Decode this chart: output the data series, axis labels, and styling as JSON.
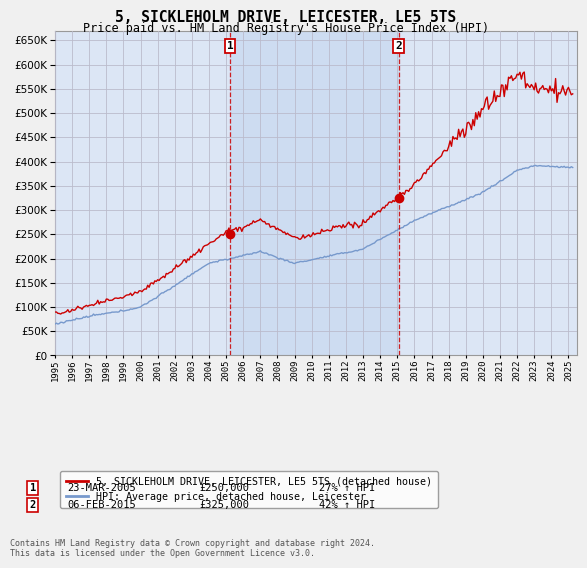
{
  "title": "5, SICKLEHOLM DRIVE, LEICESTER, LE5 5TS",
  "subtitle": "Price paid vs. HM Land Registry's House Price Index (HPI)",
  "bg_color": "#f0f0f0",
  "plot_bg_color": "#dce6f5",
  "grid_color": "#bbbbcc",
  "shade_color": "#c8d8f0",
  "sale1_year": 2005.22,
  "sale1_price": 250000,
  "sale1_label": "1",
  "sale1_date": "23-MAR-2005",
  "sale1_pct": "27% ↑ HPI",
  "sale2_year": 2015.09,
  "sale2_price": 325000,
  "sale2_label": "2",
  "sale2_date": "06-FEB-2015",
  "sale2_pct": "42% ↑ HPI",
  "yticks": [
    0,
    50000,
    100000,
    150000,
    200000,
    250000,
    300000,
    350000,
    400000,
    450000,
    500000,
    550000,
    600000,
    650000
  ],
  "xlim_min": 1995,
  "xlim_max": 2025.5,
  "ylim_min": 0,
  "ylim_max": 670000,
  "line_color_property": "#cc0000",
  "line_color_hpi": "#7799cc",
  "legend_entry1": "5, SICKLEHOLM DRIVE, LEICESTER, LE5 5TS (detached house)",
  "legend_entry2": "HPI: Average price, detached house, Leicester",
  "footnote": "Contains HM Land Registry data © Crown copyright and database right 2024.\nThis data is licensed under the Open Government Licence v3.0."
}
